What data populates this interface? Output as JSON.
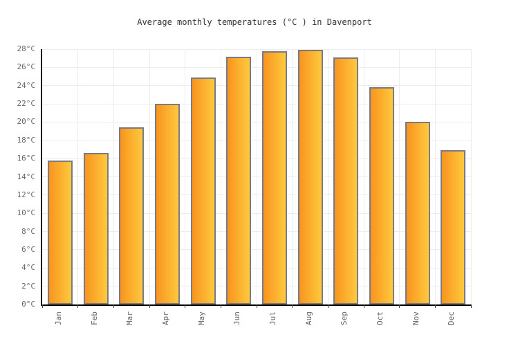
{
  "title": "Average monthly temperatures (°C ) in Davenport",
  "chart_data": {
    "type": "bar",
    "title": "Average monthly temperatures (°C ) in Davenport",
    "categories": [
      "Jan",
      "Feb",
      "Mar",
      "Apr",
      "May",
      "Jun",
      "Jul",
      "Aug",
      "Sep",
      "Oct",
      "Nov",
      "Dec"
    ],
    "values": [
      15.8,
      16.6,
      19.4,
      22.0,
      24.9,
      27.2,
      27.8,
      27.9,
      27.1,
      23.8,
      20.0,
      16.9
    ],
    "xlabel": "",
    "ylabel": "",
    "ylim": [
      0,
      28
    ],
    "ytick_step": 2,
    "ytick_suffix": "°C",
    "grid": true,
    "legend": false,
    "colors": {
      "bar_gradient_left": "#F8941F",
      "bar_gradient_right": "#FFC93D",
      "bar_border": "#7A7A85",
      "gridline": "#EDEDED",
      "axis": "#000000",
      "tick_label": "#666666",
      "title_text": "#333333",
      "background": "#FFFFFF"
    }
  }
}
